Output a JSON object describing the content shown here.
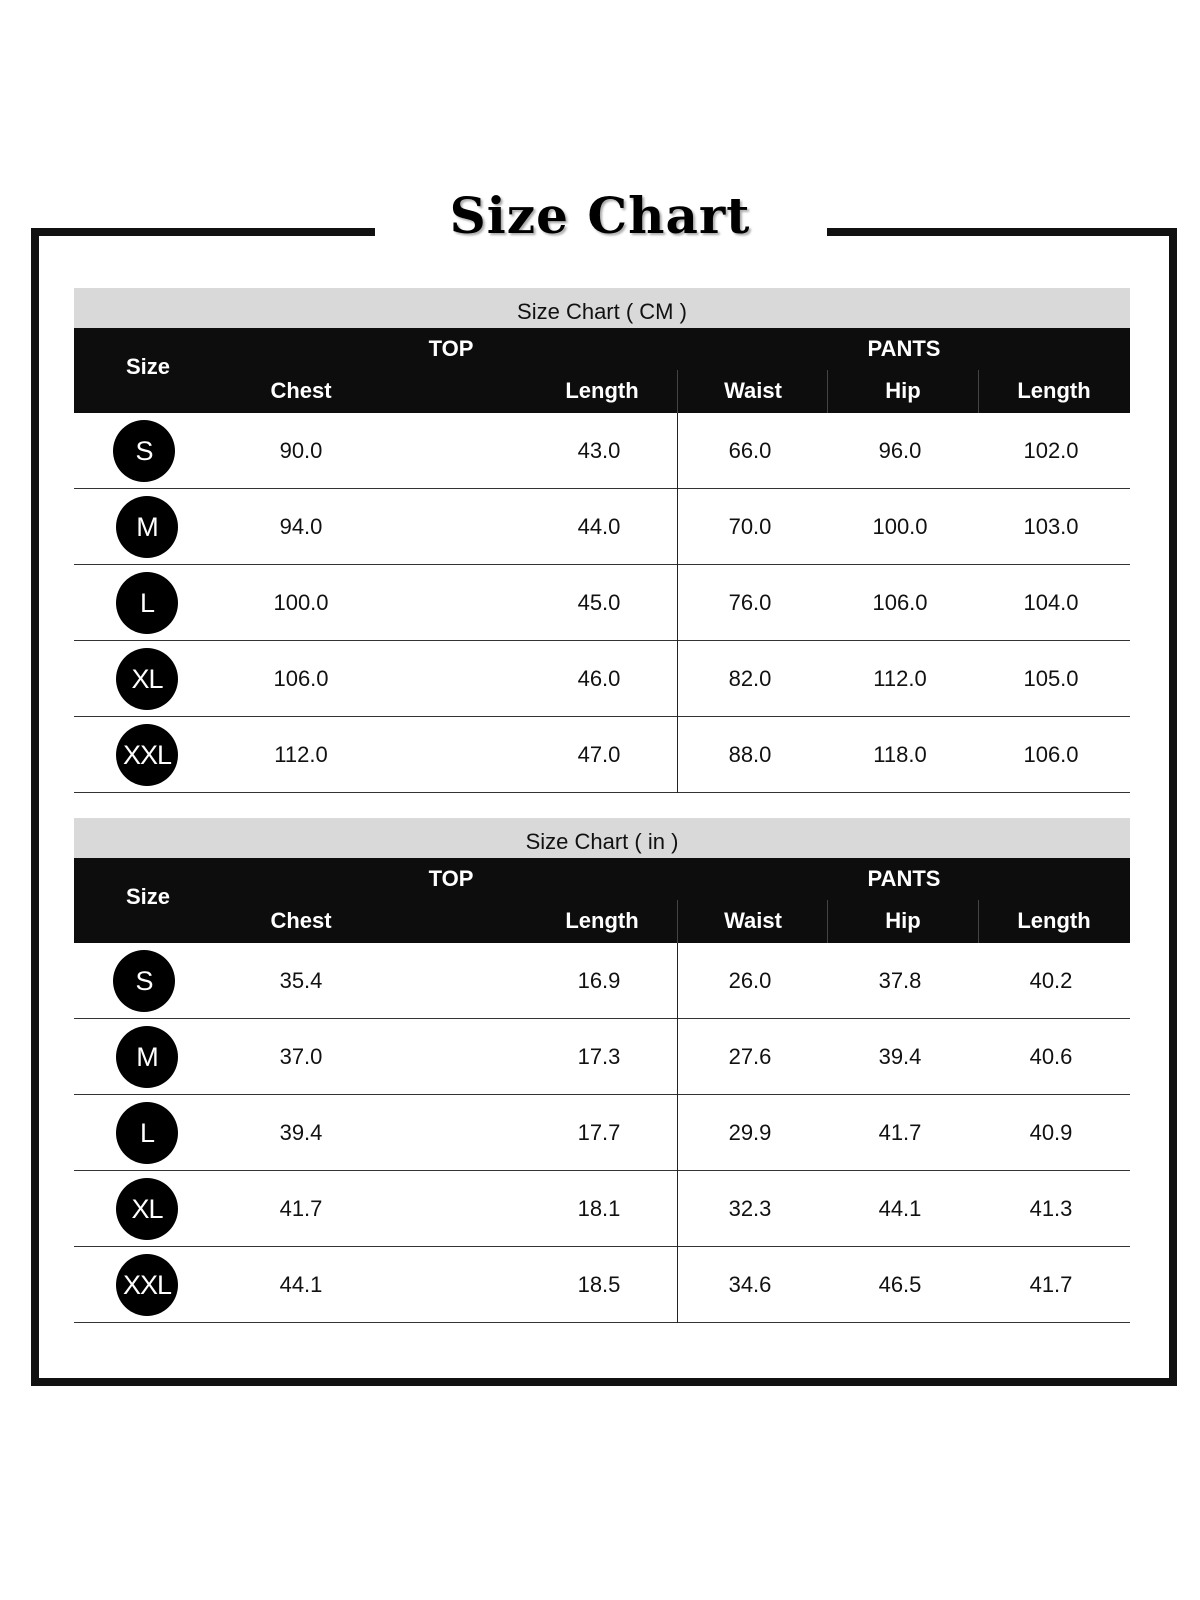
{
  "title": "Size Chart",
  "tables": [
    {
      "caption": "Size Chart ( CM )",
      "size_label": "Size",
      "group_top": "TOP",
      "group_pants": "PANTS",
      "columns": [
        "Chest",
        "Length",
        "Waist",
        "Hip",
        "Length"
      ],
      "rows": [
        {
          "size": "S",
          "values": [
            "90.0",
            "43.0",
            "66.0",
            "96.0",
            "102.0"
          ]
        },
        {
          "size": "M",
          "values": [
            "94.0",
            "44.0",
            "70.0",
            "100.0",
            "103.0"
          ]
        },
        {
          "size": "L",
          "values": [
            "100.0",
            "45.0",
            "76.0",
            "106.0",
            "104.0"
          ]
        },
        {
          "size": "XL",
          "values": [
            "106.0",
            "46.0",
            "82.0",
            "112.0",
            "105.0"
          ]
        },
        {
          "size": "XXL",
          "values": [
            "112.0",
            "47.0",
            "88.0",
            "118.0",
            "106.0"
          ]
        }
      ]
    },
    {
      "caption": "Size Chart ( in )",
      "size_label": "Size",
      "group_top": "TOP",
      "group_pants": "PANTS",
      "columns": [
        "Chest",
        "Length",
        "Waist",
        "Hip",
        "Length"
      ],
      "rows": [
        {
          "size": "S",
          "values": [
            "35.4",
            "16.9",
            "26.0",
            "37.8",
            "40.2"
          ]
        },
        {
          "size": "M",
          "values": [
            "37.0",
            "17.3",
            "27.6",
            "39.4",
            "40.6"
          ]
        },
        {
          "size": "L",
          "values": [
            "39.4",
            "17.7",
            "29.9",
            "41.7",
            "40.9"
          ]
        },
        {
          "size": "XL",
          "values": [
            "41.7",
            "18.1",
            "32.3",
            "44.1",
            "41.3"
          ]
        },
        {
          "size": "XXL",
          "values": [
            "44.1",
            "18.5",
            "34.6",
            "46.5",
            "41.7"
          ]
        }
      ]
    }
  ]
}
